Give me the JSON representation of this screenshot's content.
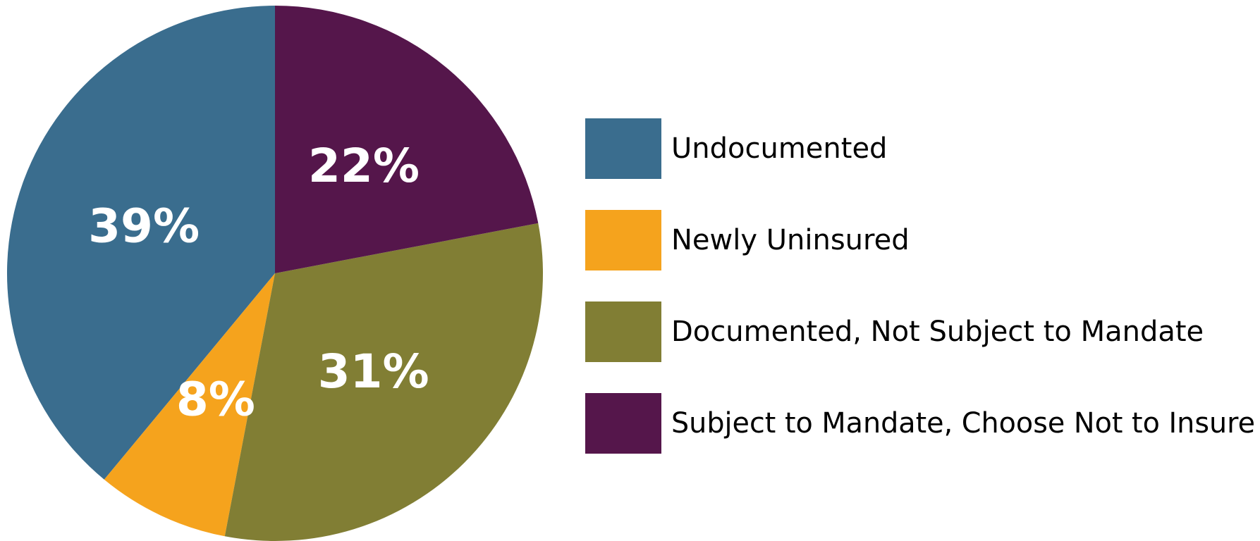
{
  "chart_data": {
    "type": "pie",
    "categories": [
      "Undocumented",
      "Newly Uninsured",
      "Documented, Not Subject to Mandate",
      "Subject to Mandate, Choose Not to Insure"
    ],
    "values": [
      39,
      8,
      31,
      22
    ],
    "value_labels": [
      "39%",
      "8%",
      "31%",
      "22%"
    ],
    "colors": [
      "#3a6d8e",
      "#f5a31d",
      "#817e34",
      "#55164b"
    ],
    "start_angle_deg": 0,
    "direction": "counterclockwise",
    "legend_placement": "right"
  }
}
